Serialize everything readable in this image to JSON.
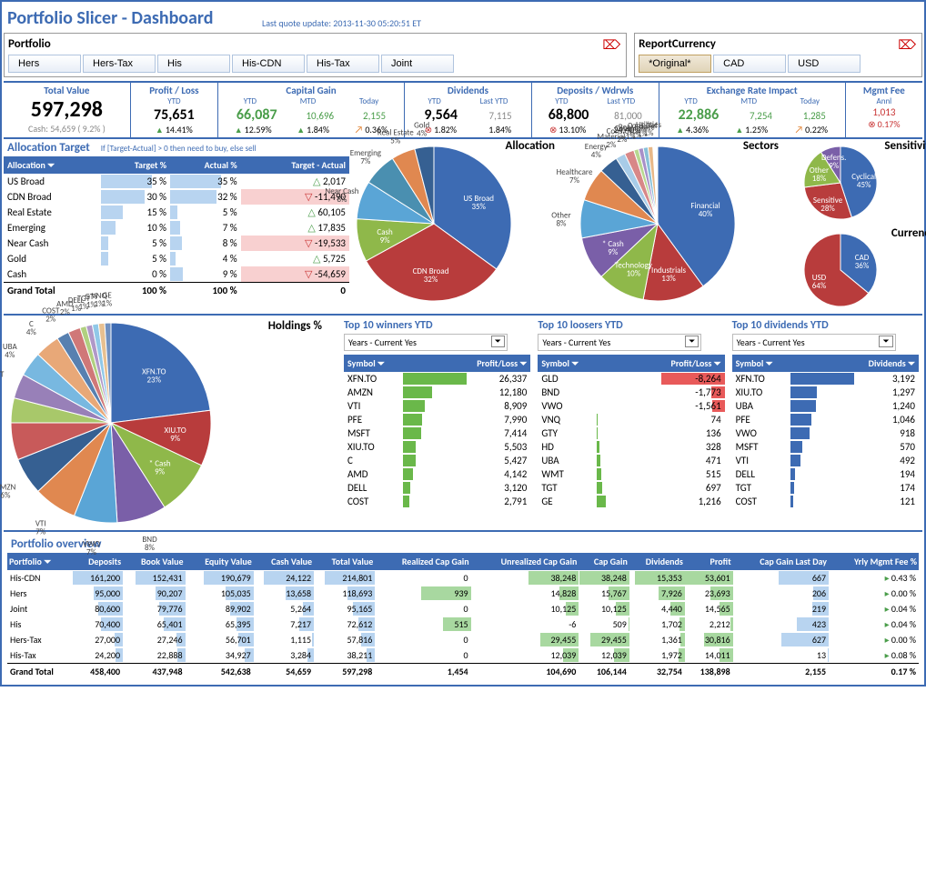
{
  "header": {
    "title": "Portfolio Slicer - Dashboard",
    "quote_update": "Last quote update: 2013-11-30 05:20:51 ET"
  },
  "portfolio_slicer": {
    "label": "Portfolio",
    "buttons": [
      "Hers",
      "Hers-Tax",
      "His",
      "His-CDN",
      "His-Tax",
      "Joint"
    ]
  },
  "currency_slicer": {
    "label": "ReportCurrency",
    "buttons": [
      "*Original*",
      "CAD",
      "USD"
    ],
    "selected": "*Original*"
  },
  "kpis": {
    "total_value": {
      "title": "Total Value",
      "value": "597,298",
      "cash": "Cash: 54,659 ( 9.2% )"
    },
    "profit_loss": {
      "title": "Profit / Loss",
      "sub": "YTD",
      "value": "75,651",
      "pct": "14.41%",
      "arrow": "up"
    },
    "capital_gain": {
      "title": "Capital Gain",
      "cols": [
        {
          "sub": "YTD",
          "val": "66,087",
          "cls": "green kpi-med",
          "pct": "12.59%",
          "arrow": "up"
        },
        {
          "sub": "MTD",
          "val": "10,696",
          "cls": "green",
          "pct": "1.84%",
          "arrow": "up"
        },
        {
          "sub": "Today",
          "val": "2,155",
          "cls": "green",
          "pct": "0.36%",
          "arrow": "diag"
        }
      ]
    },
    "dividends": {
      "title": "Dividends",
      "cols": [
        {
          "sub": "YTD",
          "val": "9,564",
          "cls": "kpi-med",
          "pct": "1.82%",
          "arrow": "x"
        },
        {
          "sub": "Last YTD",
          "val": "7,115",
          "cls": "gray",
          "pct": "1.84%",
          "arrow": ""
        }
      ]
    },
    "deposits": {
      "title": "Deposits / Wdrwls",
      "cols": [
        {
          "sub": "YTD",
          "val": "68,800",
          "cls": "kpi-med",
          "pct": "13.10%",
          "arrow": "x"
        },
        {
          "sub": "Last YTD",
          "val": "81,000",
          "cls": "gray",
          "pct": "24.40%",
          "arrow": ""
        }
      ]
    },
    "exchange": {
      "title": "Exchange Rate Impact",
      "cols": [
        {
          "sub": "YTD",
          "val": "22,886",
          "cls": "green kpi-med",
          "pct": "4.36%",
          "arrow": "up"
        },
        {
          "sub": "MTD",
          "val": "7,254",
          "cls": "green",
          "pct": "1.25%",
          "arrow": "up"
        },
        {
          "sub": "Today",
          "val": "1,285",
          "cls": "green",
          "pct": "0.22%",
          "arrow": "diag"
        }
      ]
    },
    "mgmt_fee": {
      "title": "Mgmt Fee",
      "sub": "Annl",
      "value": "1,013",
      "cls": "red",
      "pct": "0.17%",
      "arrow": "x"
    }
  },
  "allocation_target": {
    "title": "Allocation Target",
    "hint": "If [Target-Actual] > 0 then need to buy, else sell",
    "headers": [
      "Allocation",
      "Target %",
      "Actual %",
      "Target - Actual"
    ],
    "rows": [
      {
        "name": "US Broad",
        "target": 35,
        "actual": 35,
        "diff": "2,017",
        "dir": "up"
      },
      {
        "name": "CDN Broad",
        "target": 30,
        "actual": 32,
        "diff": "-11,490",
        "dir": "dn"
      },
      {
        "name": "Real Estate",
        "target": 15,
        "actual": 5,
        "diff": "60,105",
        "dir": "up"
      },
      {
        "name": "Emerging",
        "target": 10,
        "actual": 7,
        "diff": "17,835",
        "dir": "up"
      },
      {
        "name": "Near Cash",
        "target": 5,
        "actual": 8,
        "diff": "-19,533",
        "dir": "dn"
      },
      {
        "name": "Gold",
        "target": 5,
        "actual": 4,
        "diff": "5,725",
        "dir": "up"
      },
      {
        "name": "Cash",
        "target": 0,
        "actual": 9,
        "diff": "-54,659",
        "dir": "dn"
      }
    ],
    "total": {
      "name": "Grand Total",
      "target": "100 %",
      "actual": "100 %",
      "diff": "0"
    }
  },
  "pies": {
    "allocation": {
      "title": "Allocation",
      "slices": [
        {
          "label": "US Broad",
          "pct": 35,
          "color": "#3d6bb3"
        },
        {
          "label": "CDN Broad",
          "pct": 32,
          "color": "#b83c3c"
        },
        {
          "label": "Cash",
          "pct": 9,
          "color": "#8fb84a"
        },
        {
          "label": "Near Cash",
          "pct": 8,
          "color": "#5aa5d6"
        },
        {
          "label": "Emerging",
          "pct": 7,
          "color": "#4a8fb0"
        },
        {
          "label": "Real Estate",
          "pct": 5,
          "color": "#e08850"
        },
        {
          "label": "Gold",
          "pct": 4,
          "color": "#366092"
        }
      ]
    },
    "sectors": {
      "title": "Sectors",
      "slices": [
        {
          "label": "Financial",
          "pct": 40,
          "color": "#3d6bb3"
        },
        {
          "label": "Industrials",
          "pct": 13,
          "color": "#b83c3c"
        },
        {
          "label": "Technology",
          "pct": 10,
          "color": "#8fb84a"
        },
        {
          "label": "* Cash",
          "pct": 9,
          "color": "#7a5fa8"
        },
        {
          "label": "Other",
          "pct": 8,
          "color": "#5aa5d6"
        },
        {
          "label": "Healthcare",
          "pct": 7,
          "color": "#e08850"
        },
        {
          "label": "Energy",
          "pct": 4,
          "color": "#366092"
        },
        {
          "label": "Material",
          "pct": 2,
          "color": "#a8cce8"
        },
        {
          "label": "Cons.Cycl",
          "pct": 2,
          "color": "#d88888"
        },
        {
          "label": "Communi",
          "pct": 1,
          "color": "#b8d890"
        },
        {
          "label": "Real Estate",
          "pct": 1,
          "color": "#a890c8"
        },
        {
          "label": "Cons.Def",
          "pct": 1,
          "color": "#88c0d8"
        },
        {
          "label": "Utilities",
          "pct": 1,
          "color": "#e8b888"
        }
      ]
    },
    "sensitivity": {
      "title": "Sensitivity",
      "slices": [
        {
          "label": "Cyclical",
          "pct": 45,
          "color": "#3d6bb3"
        },
        {
          "label": "Sensitive",
          "pct": 28,
          "color": "#b83c3c"
        },
        {
          "label": "Other",
          "pct": 18,
          "color": "#8fb84a"
        },
        {
          "label": "Defens.",
          "pct": 9,
          "color": "#7a5fa8"
        }
      ]
    },
    "currency": {
      "title": "Currency",
      "slices": [
        {
          "label": "CAD",
          "pct": 36,
          "color": "#3d6bb3"
        },
        {
          "label": "USD",
          "pct": 64,
          "color": "#b83c3c"
        }
      ]
    },
    "holdings": {
      "title": "Holdings %",
      "slices": [
        {
          "label": "XFN.TO",
          "pct": 23,
          "color": "#3d6bb3"
        },
        {
          "label": "XIU.TO",
          "pct": 9,
          "color": "#b83c3c"
        },
        {
          "label": "* Cash",
          "pct": 9,
          "color": "#8fb84a"
        },
        {
          "label": "BND",
          "pct": 8,
          "color": "#7a5fa8"
        },
        {
          "label": "VWO",
          "pct": 7,
          "color": "#5aa5d6"
        },
        {
          "label": "VTI",
          "pct": 7,
          "color": "#e08850"
        },
        {
          "label": "AMZN",
          "pct": 6,
          "color": "#366092"
        },
        {
          "label": "PFE",
          "pct": 6,
          "color": "#c85a5a"
        },
        {
          "label": "GLD",
          "pct": 4,
          "color": "#a8c86a"
        },
        {
          "label": "MSFT",
          "pct": 4,
          "color": "#9880b8"
        },
        {
          "label": "UBA",
          "pct": 4,
          "color": "#78b8e0"
        },
        {
          "label": "C",
          "pct": 4,
          "color": "#e8a878"
        },
        {
          "label": "COST",
          "pct": 2,
          "color": "#5880b0"
        },
        {
          "label": "AMD",
          "pct": 2,
          "color": "#d07878"
        },
        {
          "label": "DELL",
          "pct": 1,
          "color": "#b0d080"
        },
        {
          "label": "TGT",
          "pct": 1,
          "color": "#b098c8"
        },
        {
          "label": "GTY",
          "pct": 1,
          "color": "#90c8e8"
        },
        {
          "label": "VNQ",
          "pct": 1,
          "color": "#e8c090"
        },
        {
          "label": "GE",
          "pct": 1,
          "color": "#7090c0"
        },
        {
          "label": "HD",
          "pct": 0,
          "color": "#d89090"
        },
        {
          "label": "WMT",
          "pct": 0,
          "color": "#c0d898"
        }
      ]
    }
  },
  "top10": {
    "winners": {
      "title": "Top 10 winners YTD",
      "filter": "Years - Current   Yes",
      "headers": [
        "Symbol",
        "Profit/Loss"
      ],
      "rows": [
        [
          "XFN.TO",
          "26,337"
        ],
        [
          "AMZN",
          "12,180"
        ],
        [
          "VTI",
          "8,909"
        ],
        [
          "PFE",
          "7,990"
        ],
        [
          "MSFT",
          "7,414"
        ],
        [
          "XIU.TO",
          "5,503"
        ],
        [
          "C",
          "5,427"
        ],
        [
          "AMD",
          "4,142"
        ],
        [
          "DELL",
          "3,120"
        ],
        [
          "COST",
          "2,791"
        ]
      ],
      "color": "#6ab84a",
      "max": 26337
    },
    "losers": {
      "title": "Top 10 loosers YTD",
      "filter": "Years - Current Yes",
      "headers": [
        "Symbol",
        "Profit/Loss"
      ],
      "rows": [
        [
          "GLD",
          "-8,264"
        ],
        [
          "BND",
          "-1,773"
        ],
        [
          "VWO",
          "-1,561"
        ],
        [
          "VNQ",
          "74"
        ],
        [
          "GTY",
          "136"
        ],
        [
          "HD",
          "328"
        ],
        [
          "UBA",
          "471"
        ],
        [
          "WMT",
          "515"
        ],
        [
          "TGT",
          "697"
        ],
        [
          "GE",
          "1,216"
        ]
      ],
      "color_neg": "#e85a5a",
      "color_pos": "#6ab84a",
      "max": 8264
    },
    "dividends": {
      "title": "Top 10 dividends YTD",
      "filter": "Years - Current Yes",
      "headers": [
        "Symbol",
        "Dividends"
      ],
      "rows": [
        [
          "XFN.TO",
          "3,192"
        ],
        [
          "XIU.TO",
          "1,297"
        ],
        [
          "UBA",
          "1,240"
        ],
        [
          "PFE",
          "1,046"
        ],
        [
          "VWO",
          "918"
        ],
        [
          "MSFT",
          "570"
        ],
        [
          "VTI",
          "492"
        ],
        [
          "DELL",
          "194"
        ],
        [
          "TGT",
          "174"
        ],
        [
          "COST",
          "121"
        ]
      ],
      "color": "#3d6bb3",
      "max": 3192
    }
  },
  "overview": {
    "title": "Portfolio overview",
    "headers": [
      "Portfolio",
      "Deposits",
      "Book Value",
      "Equity Value",
      "Cash Value",
      "Total Value",
      "Realized Cap Gain",
      "Unrealized Cap Gain",
      "Cap Gain",
      "Dividends",
      "Profit",
      "Cap Gain Last Day",
      "Yrly Mgmt Fee %"
    ],
    "rows": [
      [
        "His-CDN",
        "161,200",
        "152,431",
        "190,679",
        "24,122",
        "214,801",
        "0",
        "38,248",
        "38,248",
        "15,353",
        "53,601",
        "667",
        "0.43 %"
      ],
      [
        "Hers",
        "95,000",
        "90,207",
        "105,035",
        "13,658",
        "118,693",
        "939",
        "14,828",
        "15,767",
        "7,926",
        "23,693",
        "206",
        "0.00 %"
      ],
      [
        "Joint",
        "80,600",
        "79,776",
        "89,902",
        "5,264",
        "95,165",
        "0",
        "10,125",
        "10,125",
        "4,440",
        "14,565",
        "219",
        "0.04 %"
      ],
      [
        "His",
        "70,400",
        "65,401",
        "65,395",
        "7,217",
        "72,612",
        "515",
        "-6",
        "509",
        "1,702",
        "2,212",
        "423",
        "0.04 %"
      ],
      [
        "Hers-Tax",
        "27,000",
        "27,246",
        "56,701",
        "1,115",
        "57,816",
        "0",
        "29,455",
        "29,455",
        "1,361",
        "30,816",
        "627",
        "0.00 %"
      ],
      [
        "His-Tax",
        "24,200",
        "22,888",
        "34,927",
        "3,284",
        "38,211",
        "0",
        "12,039",
        "12,039",
        "1,972",
        "14,011",
        "13",
        "0.08 %"
      ]
    ],
    "total": [
      "Grand Total",
      "458,400",
      "437,948",
      "542,638",
      "54,659",
      "597,298",
      "1,454",
      "104,690",
      "106,144",
      "32,754",
      "138,898",
      "2,155",
      "0.17 %"
    ],
    "bar_maxes": [
      161200,
      152431,
      190679,
      24122,
      214801,
      939,
      38248,
      38248,
      15353,
      53601,
      667
    ]
  },
  "colors": {
    "primary": "#3d6bb3",
    "green": "#4a9d4a",
    "red": "#c83232",
    "bar": "#b8d4f0"
  }
}
